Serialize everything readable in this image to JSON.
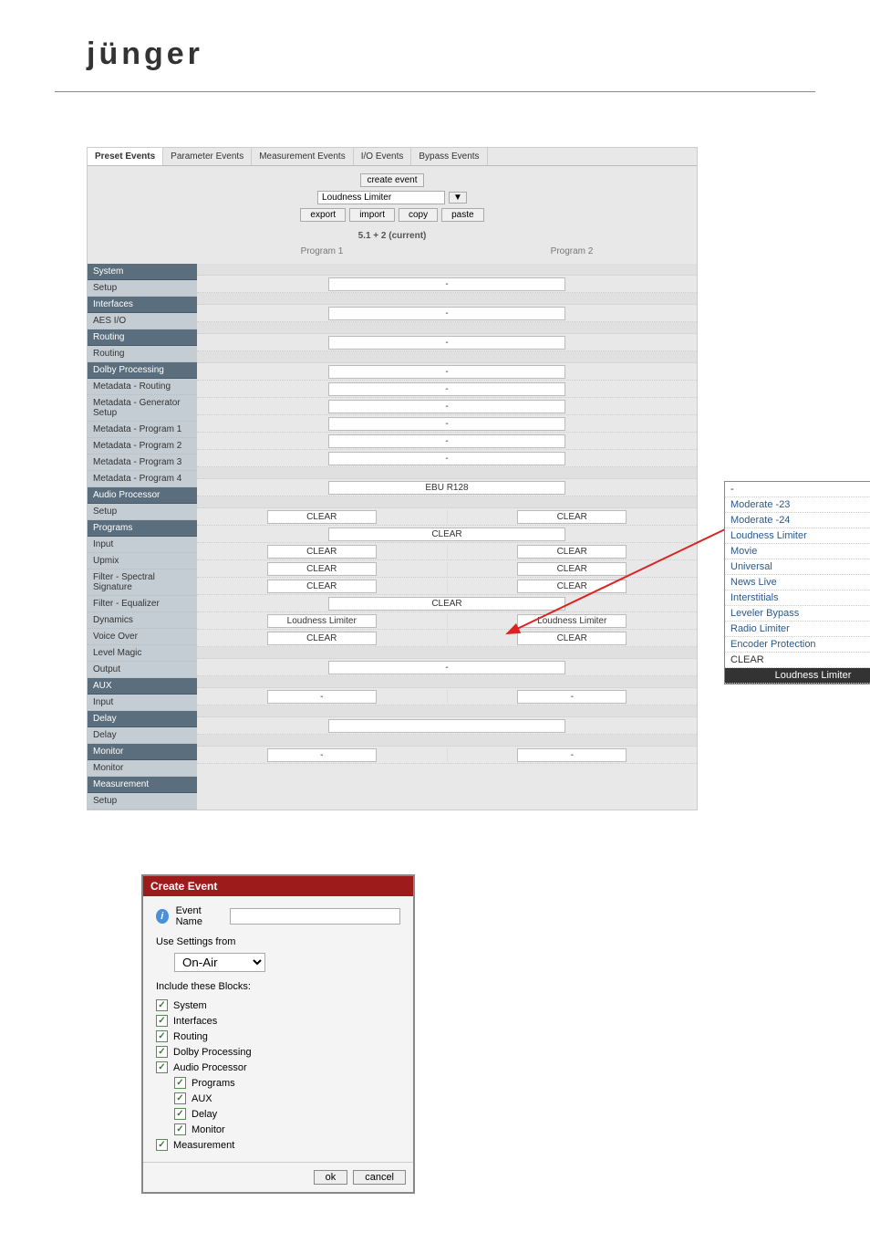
{
  "logo": "jünger",
  "tabs": [
    "Preset Events",
    "Parameter Events",
    "Measurement Events",
    "I/O Events",
    "Bypass Events"
  ],
  "active_tab": 0,
  "header": {
    "create": "create event",
    "dropdown": "Loudness Limiter",
    "buttons": [
      "export",
      "import",
      "copy",
      "paste"
    ],
    "config": "5.1 + 2 (current)",
    "programs": [
      "Program 1",
      "Program 2"
    ]
  },
  "sidebar": [
    {
      "type": "section",
      "label": "System"
    },
    {
      "type": "item",
      "label": "Setup",
      "full": "-"
    },
    {
      "type": "section",
      "label": "Interfaces"
    },
    {
      "type": "item",
      "label": "AES I/O",
      "full": "-"
    },
    {
      "type": "section",
      "label": "Routing"
    },
    {
      "type": "item",
      "label": "Routing",
      "full": "-"
    },
    {
      "type": "section",
      "label": "Dolby Processing"
    },
    {
      "type": "item",
      "label": "Metadata - Routing",
      "full": "-"
    },
    {
      "type": "item",
      "label": "Metadata - Generator Setup",
      "full": "-"
    },
    {
      "type": "item",
      "label": "Metadata - Program 1",
      "full": "-"
    },
    {
      "type": "item",
      "label": "Metadata - Program 2",
      "full": "-"
    },
    {
      "type": "item",
      "label": "Metadata - Program 3",
      "full": "-"
    },
    {
      "type": "item",
      "label": "Metadata - Program 4",
      "full": "-"
    },
    {
      "type": "section",
      "label": "Audio Processor"
    },
    {
      "type": "item",
      "label": "Setup",
      "full": "EBU R128"
    },
    {
      "type": "section",
      "label": "Programs"
    },
    {
      "type": "item",
      "label": "Input",
      "half": [
        "CLEAR",
        "CLEAR"
      ]
    },
    {
      "type": "item",
      "label": "Upmix",
      "full": "CLEAR"
    },
    {
      "type": "item",
      "label": "Filter - Spectral Signature",
      "half": [
        "CLEAR",
        "CLEAR"
      ]
    },
    {
      "type": "item",
      "label": "Filter - Equalizer",
      "half": [
        "CLEAR",
        "CLEAR"
      ]
    },
    {
      "type": "item",
      "label": "Dynamics",
      "half": [
        "CLEAR",
        "CLEAR"
      ]
    },
    {
      "type": "item",
      "label": "Voice Over",
      "full": "CLEAR"
    },
    {
      "type": "item",
      "label": "Level Magic",
      "half": [
        "Loudness Limiter",
        "Loudness Limiter"
      ]
    },
    {
      "type": "item",
      "label": "Output",
      "half": [
        "CLEAR",
        "CLEAR"
      ]
    },
    {
      "type": "section",
      "label": "AUX"
    },
    {
      "type": "item",
      "label": "Input",
      "full": "-"
    },
    {
      "type": "section",
      "label": "Delay"
    },
    {
      "type": "item",
      "label": "Delay",
      "half": [
        "-",
        "-"
      ]
    },
    {
      "type": "section",
      "label": "Monitor"
    },
    {
      "type": "item",
      "label": "Monitor",
      "full": ""
    },
    {
      "type": "section",
      "label": "Measurement"
    },
    {
      "type": "item",
      "label": "Setup",
      "half": [
        "-",
        "-"
      ]
    }
  ],
  "popup": {
    "items": [
      "-",
      "Moderate -23",
      "Moderate -24",
      "Loudness Limiter",
      "Movie",
      "Universal",
      "News Live",
      "Interstitials",
      "Leveler Bypass",
      "Radio Limiter",
      "Encoder Protection",
      "CLEAR"
    ],
    "selected": "Loudness Limiter"
  },
  "dialog": {
    "title": "Create Event",
    "event_name_label": "Event Name",
    "use_settings_label": "Use Settings from",
    "use_settings_value": "On-Air",
    "include_label": "Include these Blocks:",
    "checks": [
      {
        "label": "System",
        "indent": 0
      },
      {
        "label": "Interfaces",
        "indent": 0
      },
      {
        "label": "Routing",
        "indent": 0
      },
      {
        "label": "Dolby Processing",
        "indent": 0
      },
      {
        "label": "Audio Processor",
        "indent": 0
      },
      {
        "label": "Programs",
        "indent": 1
      },
      {
        "label": "AUX",
        "indent": 1
      },
      {
        "label": "Delay",
        "indent": 1
      },
      {
        "label": "Monitor",
        "indent": 1
      },
      {
        "label": "Measurement",
        "indent": 0
      }
    ],
    "ok": "ok",
    "cancel": "cancel"
  }
}
